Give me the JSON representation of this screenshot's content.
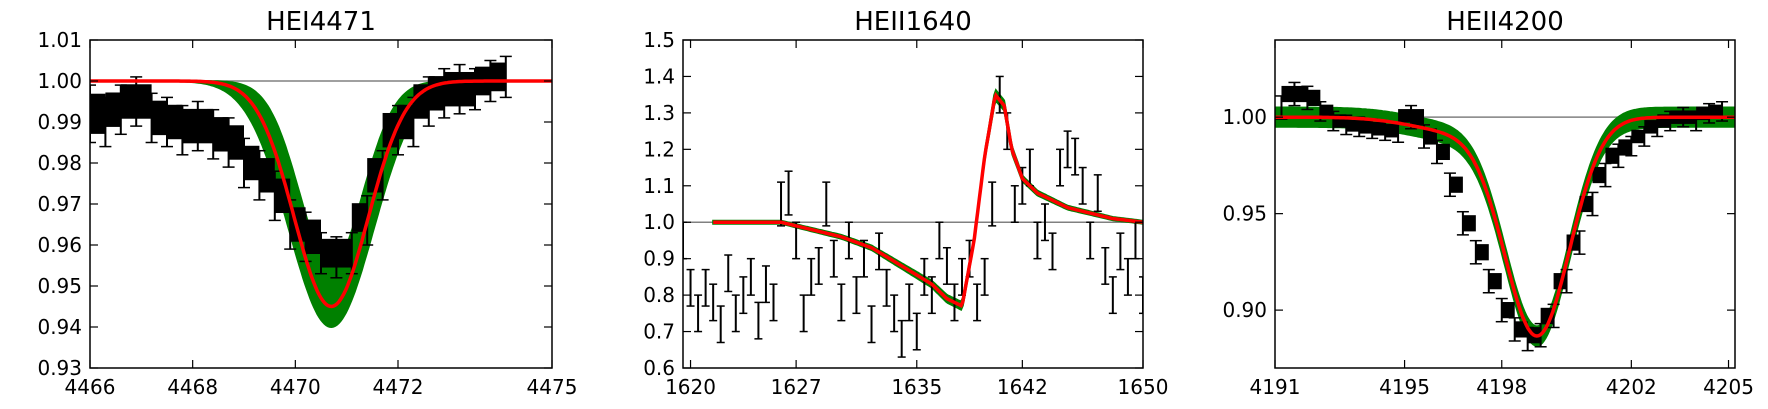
{
  "chart_data": [
    {
      "type": "line",
      "title": "HEI4471",
      "xlabel": "",
      "ylabel": "",
      "xlim": [
        4466,
        4475
      ],
      "ylim": [
        0.93,
        1.01
      ],
      "xticks": [
        "4466",
        "4468",
        "4470",
        "4472",
        "4475"
      ],
      "xtick_values": [
        4466,
        4468,
        4470,
        4472,
        4475
      ],
      "yticks": [
        "0.93",
        "0.94",
        "0.95",
        "0.96",
        "0.97",
        "0.98",
        "0.99",
        "1.00",
        "1.01"
      ],
      "ytick_values": [
        0.93,
        0.94,
        0.95,
        0.96,
        0.97,
        0.98,
        0.99,
        1.0,
        1.01
      ],
      "continuum": 1.0,
      "observed": {
        "x": [
          4466.0,
          4466.3,
          4466.6,
          4466.9,
          4467.2,
          4467.5,
          4467.8,
          4468.1,
          4468.4,
          4468.7,
          4469.0,
          4469.3,
          4469.6,
          4469.9,
          4470.2,
          4470.5,
          4470.8,
          4471.1,
          4471.4,
          4471.7,
          4472.0,
          4472.3,
          4472.6,
          4472.9,
          4473.2,
          4473.5,
          4473.8,
          4474.1
        ],
        "y": [
          0.992,
          0.99,
          0.993,
          0.995,
          0.991,
          0.99,
          0.988,
          0.989,
          0.987,
          0.985,
          0.98,
          0.977,
          0.972,
          0.965,
          0.962,
          0.958,
          0.957,
          0.958,
          0.966,
          0.977,
          0.988,
          0.99,
          0.995,
          0.997,
          0.998,
          0.998,
          1.0,
          1.001
        ],
        "err": [
          0.007,
          0.006,
          0.006,
          0.006,
          0.006,
          0.006,
          0.006,
          0.006,
          0.006,
          0.006,
          0.006,
          0.006,
          0.006,
          0.006,
          0.006,
          0.005,
          0.005,
          0.005,
          0.006,
          0.006,
          0.006,
          0.006,
          0.006,
          0.006,
          0.006,
          0.005,
          0.005,
          0.005
        ]
      },
      "best_fit": {
        "center": 4470.7,
        "sigma": 0.72,
        "depth": 0.055,
        "xmin": 4466.0,
        "xmax": 4475.0
      },
      "fit_band": {
        "depth_min": 0.045,
        "depth_max": 0.06,
        "sigma_min": 0.62,
        "sigma_max": 0.82
      }
    },
    {
      "type": "line",
      "title": "HEII1640",
      "xlabel": "",
      "ylabel": "",
      "xlim": [
        1619.5,
        1650
      ],
      "ylim": [
        0.6,
        1.5
      ],
      "xticks": [
        "1620",
        "1627",
        "1635",
        "1642",
        "1650"
      ],
      "xtick_values": [
        1620,
        1627,
        1635,
        1642,
        1650
      ],
      "yticks": [
        "0.6",
        "0.7",
        "0.8",
        "0.9",
        "1.0",
        "1.1",
        "1.2",
        "1.3",
        "1.4",
        "1.5"
      ],
      "ytick_values": [
        0.6,
        0.7,
        0.8,
        0.9,
        1.0,
        1.1,
        1.2,
        1.3,
        1.4,
        1.5
      ],
      "continuum": 1.0,
      "observed": {
        "x": [
          1619.5,
          1620.0,
          1620.5,
          1621.0,
          1621.5,
          1622.0,
          1622.5,
          1623.0,
          1623.5,
          1624.0,
          1624.5,
          1625.0,
          1625.5,
          1626.0,
          1626.5,
          1627.0,
          1627.5,
          1628.0,
          1628.5,
          1629.0,
          1629.5,
          1630.0,
          1630.5,
          1631.0,
          1631.5,
          1632.0,
          1632.5,
          1633.0,
          1633.5,
          1634.0,
          1634.5,
          1635.0,
          1635.5,
          1636.0,
          1636.5,
          1637.0,
          1637.5,
          1638.0,
          1638.5,
          1639.0,
          1639.5,
          1640.0,
          1640.5,
          1641.0,
          1641.5,
          1642.0,
          1642.5,
          1643.0,
          1643.5,
          1644.0,
          1644.5,
          1645.0,
          1645.5,
          1646.0,
          1646.5,
          1647.0,
          1647.5,
          1648.0,
          1648.5,
          1649.0,
          1649.5,
          1650.0
        ],
        "y": [
          0.95,
          0.82,
          0.75,
          0.82,
          0.78,
          0.72,
          0.86,
          0.75,
          0.8,
          0.85,
          0.73,
          0.83,
          0.78,
          1.05,
          1.08,
          0.95,
          0.75,
          0.85,
          0.88,
          1.05,
          0.9,
          0.78,
          0.95,
          0.8,
          0.9,
          0.72,
          0.92,
          0.82,
          0.75,
          0.68,
          0.78,
          0.7,
          0.85,
          0.8,
          0.95,
          0.88,
          0.78,
          0.85,
          0.9,
          0.78,
          0.85,
          1.05,
          1.35,
          1.25,
          1.05,
          1.1,
          1.15,
          0.95,
          1.0,
          0.92,
          1.15,
          1.2,
          1.18,
          1.1,
          0.95,
          1.08,
          0.88,
          0.8,
          0.92,
          0.85,
          0.95,
          0.8
        ],
        "err": [
          0.05,
          0.05,
          0.05,
          0.05,
          0.05,
          0.05,
          0.05,
          0.05,
          0.05,
          0.05,
          0.05,
          0.05,
          0.05,
          0.06,
          0.06,
          0.05,
          0.05,
          0.05,
          0.05,
          0.06,
          0.05,
          0.05,
          0.05,
          0.05,
          0.05,
          0.05,
          0.05,
          0.05,
          0.05,
          0.05,
          0.05,
          0.05,
          0.05,
          0.05,
          0.05,
          0.05,
          0.05,
          0.05,
          0.05,
          0.05,
          0.05,
          0.06,
          0.05,
          0.05,
          0.05,
          0.05,
          0.05,
          0.05,
          0.05,
          0.05,
          0.05,
          0.05,
          0.05,
          0.05,
          0.05,
          0.05,
          0.05,
          0.05,
          0.05,
          0.05,
          0.05,
          0.05
        ]
      },
      "best_fit": {
        "x": [
          1621.5,
          1626.0,
          1628.0,
          1630.0,
          1632.0,
          1634.0,
          1636.0,
          1637.0,
          1638.0,
          1638.8,
          1639.5,
          1640.2,
          1640.8,
          1641.3,
          1642.0,
          1643.0,
          1644.0,
          1645.0,
          1646.0,
          1647.0,
          1648.0,
          1649.0,
          1650.0
        ],
        "y": [
          1.0,
          1.0,
          0.98,
          0.96,
          0.93,
          0.88,
          0.83,
          0.79,
          0.77,
          0.95,
          1.18,
          1.35,
          1.32,
          1.2,
          1.12,
          1.08,
          1.06,
          1.04,
          1.03,
          1.02,
          1.01,
          1.005,
          1.0
        ]
      },
      "fit_band": {
        "spread": 0.025
      }
    },
    {
      "type": "line",
      "title": "HEII4200",
      "xlabel": "",
      "ylabel": "",
      "xlim": [
        4191,
        4205.2
      ],
      "ylim": [
        0.87,
        1.04
      ],
      "xticks": [
        "4191",
        "4195",
        "4198",
        "4202",
        "4205"
      ],
      "xtick_values": [
        4191,
        4195,
        4198,
        4202,
        4205
      ],
      "yticks": [
        "0.90",
        "0.95",
        "1.00"
      ],
      "ytick_values": [
        0.9,
        0.95,
        1.0
      ],
      "continuum": 1.0,
      "observed": {
        "x": [
          4191.2,
          4191.6,
          4192.0,
          4192.4,
          4192.8,
          4193.2,
          4193.6,
          4194.0,
          4194.4,
          4194.8,
          4195.2,
          4195.6,
          4196.0,
          4196.4,
          4196.8,
          4197.2,
          4197.6,
          4198.0,
          4198.4,
          4198.8,
          4199.2,
          4199.6,
          4200.0,
          4200.4,
          4200.8,
          4201.2,
          4201.6,
          4202.0,
          4202.4,
          4202.8,
          4203.2,
          4203.6,
          4204.0,
          4204.4,
          4204.8
        ],
        "y": [
          1.005,
          1.012,
          1.01,
          1.003,
          0.998,
          0.996,
          0.995,
          0.994,
          0.993,
          0.992,
          1.0,
          0.99,
          0.982,
          0.965,
          0.945,
          0.93,
          0.915,
          0.9,
          0.89,
          0.885,
          0.887,
          0.897,
          0.915,
          0.935,
          0.955,
          0.97,
          0.98,
          0.985,
          0.99,
          0.995,
          0.998,
          1.0,
          0.998,
          1.002,
          1.003
        ],
        "err": [
          0.006,
          0.006,
          0.006,
          0.005,
          0.005,
          0.005,
          0.005,
          0.005,
          0.005,
          0.005,
          0.006,
          0.006,
          0.006,
          0.006,
          0.006,
          0.006,
          0.006,
          0.006,
          0.006,
          0.006,
          0.006,
          0.006,
          0.006,
          0.006,
          0.006,
          0.006,
          0.006,
          0.005,
          0.005,
          0.005,
          0.005,
          0.005,
          0.005,
          0.005,
          0.005
        ]
      },
      "best_fit": {
        "center": 4199.1,
        "sigma": 1.0,
        "depth": 0.112,
        "shoulder_center": 4196.6,
        "shoulder_sigma": 1.4,
        "shoulder_depth": 0.007,
        "xmin": 4191.0,
        "xmax": 4205.2
      },
      "fit_band": {
        "spread": 0.005
      }
    }
  ]
}
